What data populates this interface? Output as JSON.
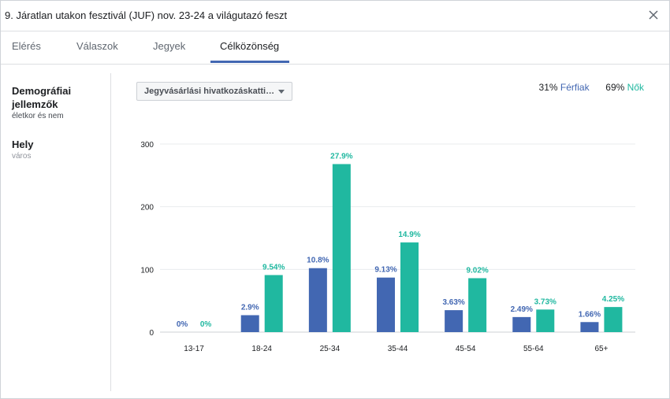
{
  "dialog": {
    "title": "9. Járatlan utakon fesztivál (JUF) nov. 23-24 a világutazó feszt"
  },
  "tabs": [
    {
      "label": "Elérés"
    },
    {
      "label": "Válaszok"
    },
    {
      "label": "Jegyek"
    },
    {
      "label": "Célközönség"
    }
  ],
  "sidebar": {
    "demographics": {
      "title": "Demográfiai jellemzők",
      "subtitle": "életkor és nem"
    },
    "location": {
      "title": "Hely",
      "subtitle": "város"
    }
  },
  "filter": {
    "selected": "Jegyvásárlási hivatkozáskatti…"
  },
  "legend": {
    "men_pct": "31%",
    "men_label": "Férfiak",
    "women_pct": "69%",
    "women_label": "Nők"
  },
  "colors": {
    "men": "#4267b2",
    "women": "#20b8a0",
    "grid": "#e9ebee"
  },
  "chart_data": {
    "type": "bar",
    "categories": [
      "13-17",
      "18-24",
      "25-34",
      "35-44",
      "45-54",
      "55-64",
      "65+"
    ],
    "yticks": [
      0,
      100,
      200,
      300
    ],
    "ylim": [
      0,
      300
    ],
    "series": [
      {
        "name": "Férfiak",
        "values": [
          0,
          27,
          102,
          87,
          35,
          24,
          16
        ],
        "labels": [
          "0%",
          "2.9%",
          "10.8%",
          "9.13%",
          "3.63%",
          "2.49%",
          "1.66%"
        ]
      },
      {
        "name": "Nők",
        "values": [
          0,
          91,
          268,
          143,
          86,
          36,
          40
        ],
        "labels": [
          "0%",
          "9.54%",
          "27.9%",
          "14.9%",
          "9.02%",
          "3.73%",
          "4.25%"
        ]
      }
    ]
  }
}
